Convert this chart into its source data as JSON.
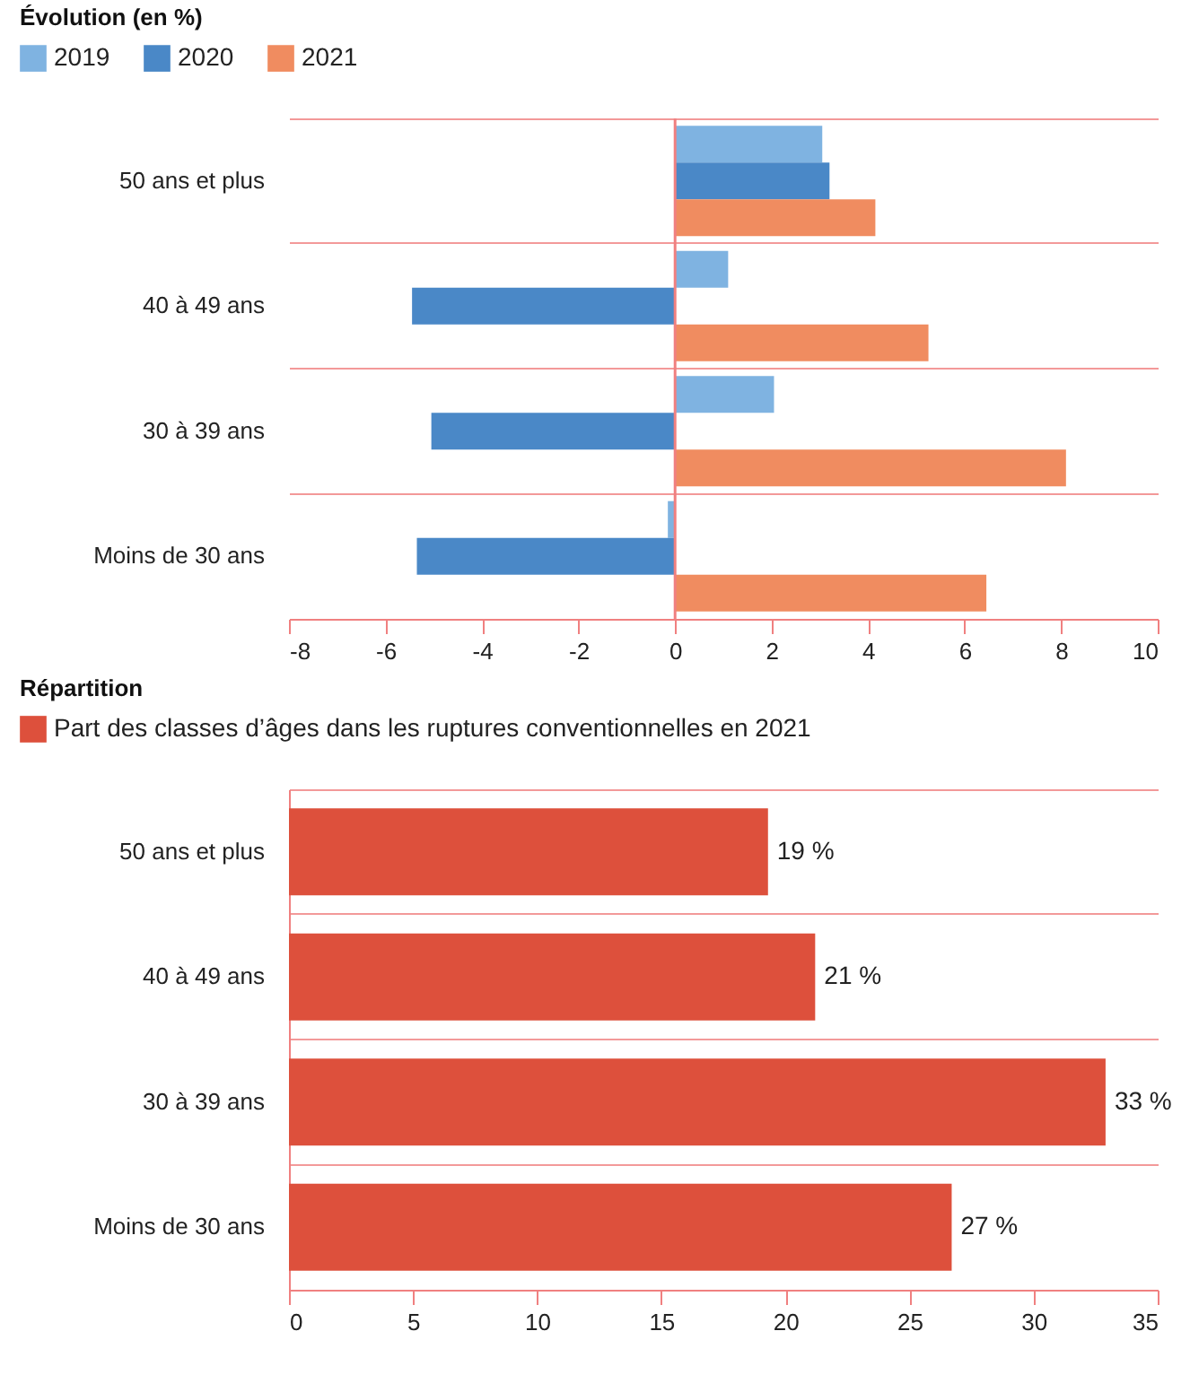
{
  "chart_data": [
    {
      "type": "bar",
      "orientation": "horizontal",
      "legend_title": "Évolution (en %)",
      "legend": "top left",
      "grid": "y",
      "categories": [
        "50 ans et plus",
        "40 à 49 ans",
        "30 à 39 ans",
        "Moins de 30 ans"
      ],
      "series": [
        {
          "name": "2019",
          "color": "#7fb3e1",
          "values": [
            3.05,
            1.1,
            2.05,
            -0.15
          ]
        },
        {
          "name": "2020",
          "color": "#4a88c7",
          "values": [
            3.2,
            -5.45,
            -5.05,
            -5.35
          ]
        },
        {
          "name": "2021",
          "color": "#f08c60",
          "values": [
            4.15,
            5.25,
            8.1,
            6.45
          ]
        }
      ],
      "xlim": [
        -8,
        10
      ],
      "xticks": [
        -8,
        -6,
        -4,
        -2,
        0,
        2,
        4,
        6,
        8,
        10
      ],
      "ref_lines": [
        {
          "axis": "x",
          "value": 0,
          "color": "#f08080"
        }
      ]
    },
    {
      "type": "bar",
      "orientation": "horizontal",
      "legend_title": "Répartition",
      "legend": "top left",
      "grid": "y",
      "categories": [
        "50 ans et plus",
        "40 à 49 ans",
        "30 à 39 ans",
        "Moins de 30 ans"
      ],
      "series": [
        {
          "name": "Part des classes d’âges dans les ruptures conventionnelles en 2021",
          "color": "#dd503c",
          "values": [
            19.3,
            21.2,
            32.9,
            26.7
          ],
          "value_labels": [
            "19 %",
            "21 %",
            "33 %",
            "27 %"
          ]
        }
      ],
      "xlim": [
        0,
        35
      ],
      "xticks": [
        0,
        5,
        10,
        15,
        20,
        25,
        30,
        35
      ]
    }
  ]
}
